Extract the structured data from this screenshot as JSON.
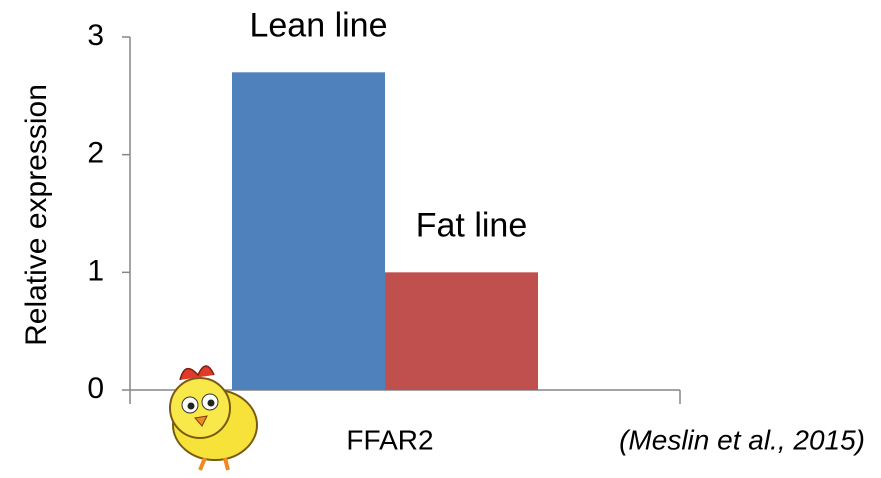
{
  "chart_data": {
    "type": "bar",
    "y_label": "Relative expression",
    "categories": [
      "FFAR2"
    ],
    "series": [
      {
        "name": "Lean line",
        "color": "#4f81bd",
        "values": [
          2.7
        ]
      },
      {
        "name": "Fat line",
        "color": "#c0504d",
        "values": [
          1
        ]
      }
    ],
    "ylim": [
      0,
      3
    ],
    "yticks": [
      0,
      1,
      2,
      3
    ],
    "annotation": "(Meslin et al., 2015)"
  }
}
